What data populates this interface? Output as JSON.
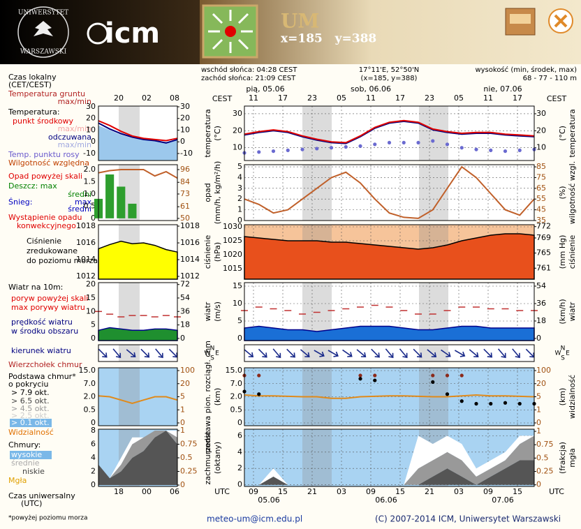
{
  "header": {
    "university_top": "UNIWERSYTET",
    "university_bottom": "WARSZAWSKI",
    "logo": "icm",
    "model": "UM",
    "coords": "x=185   y=388"
  },
  "info": {
    "sunrise": "wschód słońca: 04:28 CEST",
    "sunset": "zachód słońca: 21:09 CEST",
    "location": "17°11'E, 52°50'N",
    "grid": "(x=185, y=388)",
    "height_label": "wysokość (min, środek, max)",
    "height": "68 - 77 - 110 m"
  },
  "time": {
    "local_label": "CEST",
    "utc_label": "UTC",
    "dates": [
      "pią, 05.06",
      "sob, 06.06",
      "nie, 07.06"
    ],
    "local_hours": [
      "11",
      "17",
      "23",
      "05",
      "11",
      "17",
      "23",
      "05",
      "11",
      "17"
    ],
    "utc_hours": [
      "09",
      "15",
      "21",
      "03",
      "09",
      "15",
      "21",
      "03",
      "09",
      "15"
    ],
    "utc_dates": [
      "05.06",
      "06.06",
      "07.06"
    ],
    "mini_local": [
      "20",
      "02",
      "08"
    ],
    "mini_utc": [
      "18",
      "00",
      "06"
    ]
  },
  "legend": [
    {
      "text": "Czas lokalny",
      "color": "#000000"
    },
    {
      "text": "(CET/CEST)",
      "color": "#000000"
    },
    {
      "text": "Temperatura gruntu",
      "color": "#b22222"
    },
    {
      "text": "max/min",
      "color": "#b22222"
    },
    {
      "text": "Temperatura:",
      "color": "#000000"
    },
    {
      "text": "punkt środkowy",
      "color": "#e00000"
    },
    {
      "text": "max/min",
      "color": "#f4a6a6"
    },
    {
      "text": "odczuwana",
      "color": "#000080"
    },
    {
      "text": "max/min",
      "color": "#a0a8e0"
    },
    {
      "text": "Temp. punktu rosy",
      "color": "#6a5acd"
    },
    {
      "text": "Wilgotność względna",
      "color": "#c04000"
    },
    {
      "text": "Opad powyżej skali",
      "color": "#e00000"
    },
    {
      "text": "Deszcz: max",
      "color": "#008000"
    },
    {
      "text": "średni",
      "color": "#008000"
    },
    {
      "text": "Śnieg:",
      "color": "#0000c0"
    },
    {
      "text": "max",
      "color": "#0000c0"
    },
    {
      "text": "średni",
      "color": "#0000c0"
    },
    {
      "text": "Wystąpienie opadu",
      "color": "#e00000"
    },
    {
      "text": "konwekcyjnego",
      "color": "#e00000"
    },
    {
      "text": "Ciśnienie",
      "color": "#000000"
    },
    {
      "text": "zredukowane",
      "color": "#000000"
    },
    {
      "text": "do poziomu morza",
      "color": "#000000"
    },
    {
      "text": "Wiatr na 10m:",
      "color": "#000000"
    },
    {
      "text": "poryw powyżej skali",
      "color": "#e00000"
    },
    {
      "text": "max porywy wiatru",
      "color": "#e00000"
    },
    {
      "text": "prędkość wiatru",
      "color": "#000080"
    },
    {
      "text": "w środku obszaru",
      "color": "#000080"
    },
    {
      "text": "kierunek wiatru",
      "color": "#000080"
    },
    {
      "text": "Wierzchołek chmur",
      "color": "#b22222"
    },
    {
      "text": "Podstawa chmur*",
      "color": "#000000"
    },
    {
      "text": "o pokryciu",
      "color": "#000000"
    },
    {
      "text": "> 7.9 okt.",
      "color": "#000000"
    },
    {
      "text": "> 6.5 okt.",
      "color": "#444444"
    },
    {
      "text": "> 4.5 okt.",
      "color": "#999999"
    },
    {
      "text": "> 2.5 okt.",
      "color": "#cccccc"
    },
    {
      "text": "> 0.1 okt.",
      "color": "#ffffff",
      "bg": "#7ab8e8"
    },
    {
      "text": "Widzialność",
      "color": "#e07000"
    },
    {
      "text": "Chmury:",
      "color": "#000000"
    },
    {
      "text": "wysokie",
      "color": "#ffffff",
      "bg": "#7ab8e8"
    },
    {
      "text": "średnie",
      "color": "#aaaaaa"
    },
    {
      "text": "niskie",
      "color": "#444444"
    },
    {
      "text": "Mgła",
      "color": "#e0a000"
    },
    {
      "text": "Czas uniwersalny",
      "color": "#000000"
    },
    {
      "text": "(UTC)",
      "color": "#000000"
    }
  ],
  "chart_data": [
    {
      "type": "line",
      "ylabel": [
        "temperatura",
        "(°C)"
      ],
      "y2label": [
        "(°C)",
        "temperatura"
      ],
      "grid": true,
      "ylim": [
        2.5,
        34.5
      ],
      "yticks": [
        10,
        20,
        30
      ],
      "y2lim": [
        2.5,
        34.5
      ],
      "y2ticks": [
        10,
        20,
        30
      ],
      "series": [
        {
          "style": "dots",
          "color": "#6a6ad0",
          "values": [
            7,
            7.5,
            8,
            8.5,
            9,
            9.5,
            10,
            10.5,
            11,
            12,
            13,
            13,
            13,
            14,
            12,
            10,
            9,
            8.5,
            8,
            8.5,
            9
          ]
        },
        {
          "style": "line",
          "color": "#000080",
          "values": [
            17.5,
            19,
            20,
            19,
            16.5,
            14.5,
            13,
            12.5,
            16.5,
            21.5,
            24.5,
            25.5,
            24.5,
            20.5,
            19,
            18,
            18.5,
            18.5,
            17.5,
            17,
            16.5
          ]
        },
        {
          "style": "line",
          "color": "#e00000",
          "values": [
            18,
            19.5,
            20.5,
            19.5,
            17,
            15,
            13.5,
            13,
            17,
            22,
            25,
            26,
            25,
            21,
            19.5,
            18.5,
            19,
            19,
            18,
            17.5,
            17
          ]
        }
      ]
    },
    {
      "type": "line",
      "ylabel": [
        "opad",
        "(mm/h, kg/m²/h)"
      ],
      "y2label": [
        "(%)",
        "wilgotność wzgl."
      ],
      "grid": true,
      "ylim": [
        0,
        5.2
      ],
      "yticks": [
        0,
        1,
        2,
        3,
        4,
        5
      ],
      "y2lim": [
        35,
        87
      ],
      "y2ticks": [
        35,
        45,
        55,
        65,
        75,
        85
      ],
      "series": [
        {
          "style": "line",
          "axis": "y2",
          "color": "#c0602a",
          "values": [
            55,
            50,
            42,
            45,
            55,
            65,
            75,
            80,
            70,
            55,
            42,
            38,
            37,
            45,
            65,
            85,
            75,
            60,
            45,
            40,
            55
          ]
        }
      ]
    },
    {
      "type": "line",
      "ylabel": [
        "ciśnienie",
        "(hPa)"
      ],
      "y2label": [
        "(mm Hg)",
        "ciśnienie"
      ],
      "grid": true,
      "ylim": [
        1011.25,
        1030.75
      ],
      "yticks": [
        1015,
        1020,
        1025,
        1030
      ],
      "y2lim": [
        758.1,
        772.5
      ],
      "y2ticks": [
        761,
        765,
        769,
        772
      ],
      "series": [
        {
          "style": "area",
          "color": "#e8501c",
          "edge": "#000000",
          "values": [
            1026.5,
            1026,
            1025.5,
            1025,
            1025,
            1025,
            1024.5,
            1024.5,
            1024,
            1023.5,
            1023,
            1022.5,
            1022,
            1022.5,
            1023.5,
            1025,
            1026,
            1027,
            1027.5,
            1027.5,
            1027
          ]
        }
      ]
    },
    {
      "type": "line",
      "ylabel": [
        "wiatr",
        "(m/s)"
      ],
      "y2label": [
        "(km/h)",
        "wiatr"
      ],
      "grid": true,
      "ylim": [
        -0.6,
        16
      ],
      "yticks": [
        0,
        5,
        10,
        15
      ],
      "y2lim": [
        -2.2,
        57.6
      ],
      "y2ticks": [
        0,
        18,
        36,
        54
      ],
      "series": [
        {
          "style": "area",
          "color": "#1a6fd6",
          "edge": "#00008b",
          "values": [
            3,
            3.5,
            3,
            2.5,
            2.5,
            2,
            2.5,
            3,
            3.5,
            3.5,
            3.5,
            3,
            2.5,
            2.5,
            3,
            3.5,
            3.5,
            3,
            3,
            3,
            3
          ]
        },
        {
          "style": "dashes",
          "color": "#c03030",
          "values": [
            8,
            9,
            8.5,
            8,
            7,
            7.5,
            8,
            8.5,
            9,
            9.5,
            9,
            8,
            7,
            7,
            8,
            9,
            9,
            8.5,
            8.5,
            8,
            8
          ]
        }
      ]
    },
    {
      "type": "quiver",
      "compass": [
        "N",
        "S",
        "W",
        "E"
      ],
      "series": [
        {
          "style": "arrows",
          "color": "#1a2a8a",
          "values": [
            310,
            315,
            320,
            315,
            310,
            300,
            300,
            305,
            310,
            315,
            320,
            320,
            315,
            310,
            305,
            300,
            310,
            315,
            320,
            320,
            315
          ]
        }
      ]
    },
    {
      "type": "line",
      "ylabel": [
        "podstawa pion. rozciągł. chm",
        "(km)"
      ],
      "y2label": [
        "(km)",
        "widzialność"
      ],
      "grid": true,
      "scale": "piecewise",
      "ylim": [
        0,
        15
      ],
      "yticks": [
        0,
        0.5,
        {
          "value": 2,
          "label": "2.0"
        },
        {
          "value": 7,
          "label": "7.0"
        },
        {
          "value": 15,
          "label": "15.0"
        }
      ],
      "y2lim": [
        0,
        100
      ],
      "y2ticks": [
        0,
        1,
        5,
        20,
        100
      ],
      "series": [
        {
          "style": "line",
          "axis": "y2",
          "color": "#e08a1a",
          "values": [
            7,
            6,
            6,
            5.5,
            5,
            5,
            4.5,
            4.5,
            5,
            5.5,
            6,
            6,
            5.5,
            5,
            5,
            6,
            7,
            6,
            6,
            5.5,
            5
          ]
        },
        {
          "style": "dots",
          "color": "#8b2a1a",
          "values": [
            12,
            12,
            null,
            null,
            null,
            null,
            null,
            null,
            12,
            12,
            null,
            null,
            null,
            12,
            12,
            12,
            null,
            null,
            null,
            null,
            null
          ]
        },
        {
          "style": "dots",
          "color": "#000000",
          "values": [
            4,
            3,
            null,
            null,
            null,
            null,
            null,
            null,
            10,
            9,
            null,
            null,
            null,
            8,
            3,
            1.5,
            1.2,
            1.2,
            1.3,
            1.2,
            1.2
          ]
        }
      ]
    },
    {
      "type": "line",
      "ylabel": [
        "zachmurzenie",
        "(oktany)"
      ],
      "y2label": [
        "(frakcja)",
        "mgła"
      ],
      "grid": true,
      "ylim": [
        -0.2,
        6.8
      ],
      "yticks": [
        0,
        2,
        4,
        6
      ],
      "y2lim": [
        -0.03,
        1.04
      ],
      "y2ticks": [
        0,
        0.25,
        0.5,
        0.75,
        1
      ],
      "series": [
        {
          "style": "stack",
          "color": "#555555",
          "values": [
            0,
            0,
            1,
            0,
            0,
            0,
            0,
            0,
            0,
            0,
            0,
            0,
            0,
            1,
            2,
            1,
            0,
            1,
            2,
            3,
            3
          ]
        },
        {
          "style": "stack",
          "color": "#999999",
          "values": [
            0,
            0,
            0,
            0,
            0,
            0,
            0,
            0,
            0,
            0,
            0,
            0,
            2,
            2,
            2,
            2,
            1,
            1,
            1,
            2,
            3
          ]
        },
        {
          "style": "stack",
          "color": "#ffffff",
          "values": [
            0,
            0,
            1,
            0,
            0,
            0,
            0,
            0,
            0,
            0,
            0,
            0,
            4,
            2,
            2,
            2,
            1,
            1,
            1,
            1,
            0
          ]
        }
      ]
    },
    {
      "type": "line",
      "ylim": [
        -16,
        30.6
      ],
      "yticks": [
        -10,
        0,
        10,
        20,
        30
      ],
      "y2lim": [
        -16,
        30.6
      ],
      "y2ticks": [
        -10,
        0,
        10,
        20,
        30
      ],
      "series": [
        {
          "style": "area",
          "color": "#9cc8ec",
          "values": [
            14,
            10,
            6,
            3,
            2,
            1,
            0,
            2
          ]
        },
        {
          "style": "line",
          "color": "#000080",
          "values": [
            16,
            11,
            7,
            4,
            2,
            1,
            -1,
            2
          ]
        },
        {
          "style": "line",
          "color": "#e00000",
          "values": [
            18,
            14,
            9,
            5,
            3,
            2,
            1,
            3
          ]
        }
      ]
    },
    {
      "type": "line",
      "ylim": [
        -0.09,
        2.2
      ],
      "yticks": [
        0,
        0.5,
        {
          "value": 1,
          "label": "1.0"
        },
        1.5,
        {
          "value": 2,
          "label": "2.0"
        }
      ],
      "y2lim": [
        48,
        100.6
      ],
      "y2ticks": [
        50,
        61,
        73,
        84,
        96
      ],
      "series": [
        {
          "style": "bars",
          "color": "#2e9e2e",
          "values": [
            0.8,
            1.8,
            1.3,
            0.6,
            0,
            0,
            0,
            0
          ]
        },
        {
          "style": "line",
          "axis": "y2",
          "color": "#c0602a",
          "values": [
            93,
            95,
            96,
            96,
            96,
            90,
            94,
            88
          ]
        }
      ]
    },
    {
      "type": "line",
      "ylim": [
        1011.67,
        1018.17
      ],
      "yticks": [
        1012,
        1014,
        1016,
        1018
      ],
      "y2lim": [
        1011.67,
        1018.17
      ],
      "y2ticks": [
        1012,
        1014,
        1016,
        1018
      ],
      "series": [
        {
          "style": "area",
          "color": "#ffff00",
          "edge": "#000000",
          "values": [
            1015.3,
            1015.8,
            1016.2,
            1015.9,
            1016,
            1015.7,
            1015.2,
            1014.9
          ]
        }
      ]
    },
    {
      "type": "line",
      "ylim": [
        -0.8,
        20.7
      ],
      "yticks": [
        0,
        5,
        10,
        15,
        20
      ],
      "y2lim": [
        -2.9,
        74.5
      ],
      "y2ticks": [
        0,
        18,
        36,
        54,
        72
      ],
      "series": [
        {
          "style": "area",
          "color": "#1f8f2f",
          "edge": "#00008b",
          "values": [
            3,
            4,
            3.5,
            3,
            3,
            3.5,
            3.5,
            3
          ]
        },
        {
          "style": "dashes",
          "color": "#c03030",
          "values": [
            10,
            9,
            8,
            8.5,
            8.5,
            8,
            8.5,
            8
          ]
        }
      ]
    },
    {
      "type": "quiver",
      "series": [
        {
          "style": "arrows",
          "color": "#1a2a8a",
          "values": [
            315,
            320,
            310,
            315,
            320,
            315
          ]
        }
      ]
    },
    {
      "type": "line",
      "scale": "piecewise",
      "ylim": [
        0,
        15
      ],
      "yticks": [
        0,
        0.5,
        {
          "value": 2,
          "label": "2.0"
        },
        {
          "value": 7,
          "label": "7.0"
        },
        {
          "value": 15,
          "label": "15.0"
        }
      ],
      "y2lim": [
        0,
        100
      ],
      "y2ticks": [
        0,
        1,
        5,
        20,
        100
      ],
      "series": [
        {
          "style": "line",
          "axis": "y2",
          "color": "#e08a1a",
          "values": [
            6,
            5,
            4,
            3,
            4,
            5,
            5,
            4
          ]
        }
      ]
    },
    {
      "type": "line",
      "ylim": [
        -0.2,
        8.2
      ],
      "yticks": [
        0,
        2,
        4,
        6,
        8
      ],
      "y2lim": [
        -0.025,
        1.025
      ],
      "y2ticks": [
        0,
        0.25,
        0.5,
        0.75,
        1
      ],
      "series": [
        {
          "style": "stack",
          "color": "#555555",
          "values": [
            3,
            1,
            2,
            4,
            5,
            7,
            8,
            6
          ]
        },
        {
          "style": "stack",
          "color": "#999999",
          "values": [
            0,
            0,
            1,
            2,
            2,
            1,
            0,
            1
          ]
        },
        {
          "style": "stack",
          "color": "#ffffff",
          "values": [
            0,
            0,
            1,
            1,
            0,
            0,
            0,
            1
          ]
        }
      ]
    }
  ],
  "footer": {
    "note": "*powyżej poziomu morza",
    "email": "meteo-um@icm.edu.pl",
    "copyright": "(C) 2007-2014 ICM, Uniwersytet Warszawski"
  }
}
